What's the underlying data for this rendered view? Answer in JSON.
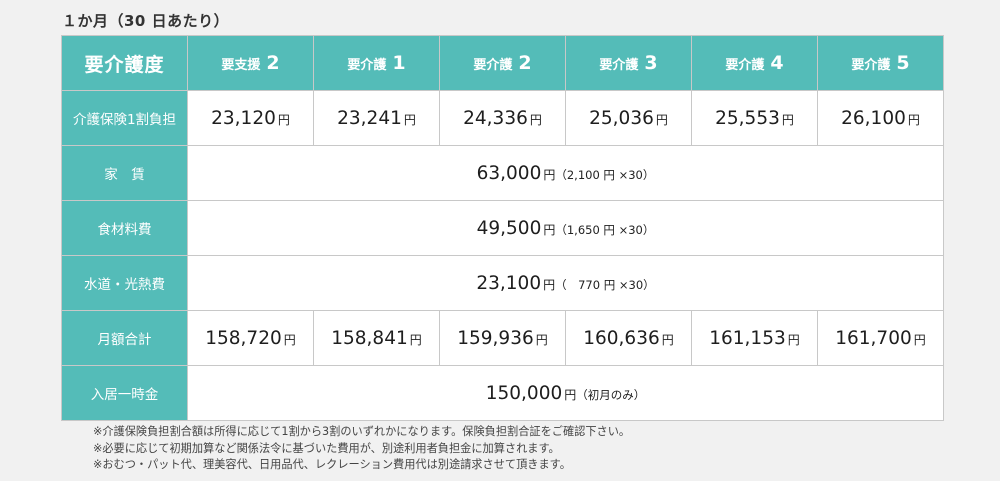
{
  "caption": "１か月（30 日あたり）",
  "header": {
    "main": "要介護度",
    "levels": [
      {
        "label": "要支援",
        "num": "2"
      },
      {
        "label": "要介護",
        "num": "1"
      },
      {
        "label": "要介護",
        "num": "2"
      },
      {
        "label": "要介護",
        "num": "3"
      },
      {
        "label": "要介護",
        "num": "4"
      },
      {
        "label": "要介護",
        "num": "5"
      }
    ]
  },
  "unit": "円",
  "rows": {
    "copay": {
      "label": "介護保険1割負担",
      "values": [
        "23,120",
        "23,241",
        "24,336",
        "25,036",
        "25,553",
        "26,100"
      ]
    },
    "rent": {
      "label": "家　賃",
      "value": "63,000",
      "note": "（2,100 円 ×30）"
    },
    "food": {
      "label": "食材料費",
      "value": "49,500",
      "note": "（1,650 円 ×30）"
    },
    "utilities": {
      "label": "水道・光熱費",
      "value": "23,100",
      "note": "（　770 円 ×30）"
    },
    "total": {
      "label": "月額合計",
      "values": [
        "158,720",
        "158,841",
        "159,936",
        "160,636",
        "161,153",
        "161,700"
      ]
    },
    "deposit": {
      "label": "入居一時金",
      "value": "150,000",
      "note": "（初月のみ）"
    }
  },
  "notes": [
    "※介護保険負担割合額は所得に応じて1割から3割のいずれかになります。保険負担割合証をご確認下さい。",
    "※必要に応じて初期加算など関係法令に基づいた費用が、別途利用者負担金に加算されます。",
    "※おむつ・パット代、理美容代、日用品代、レクレーション費用代は別途請求させて頂きます。"
  ]
}
